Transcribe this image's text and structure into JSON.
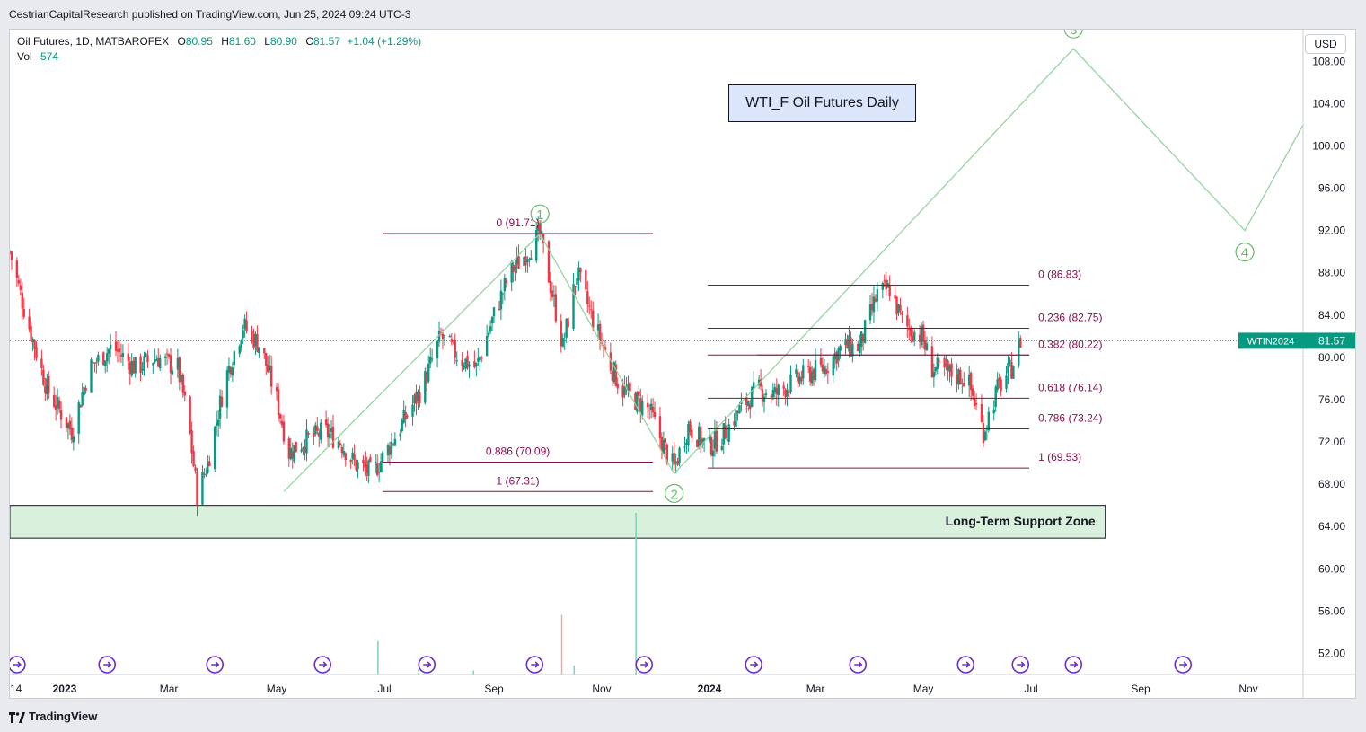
{
  "header": {
    "publisher_line": "CestrianCapitalResearch published on TradingView.com, Jun 25, 2024 09:24 UTC-3"
  },
  "legend": {
    "symbol": "Oil Futures, 1D, MATBAROFEX",
    "o_label": "O",
    "o_value": "80.95",
    "h_label": "H",
    "h_value": "81.60",
    "l_label": "L",
    "l_value": "80.90",
    "c_label": "C",
    "c_value": "81.57",
    "change": "+1.04 (+1.29%)",
    "vol_label": "Vol",
    "vol_value": "574"
  },
  "currency_button": "USD",
  "annotation_title": "WTI_F Oil Futures Daily",
  "support_zone_label": "Long-Term Support Zone",
  "price_tag": {
    "symbol": "WTIN2024",
    "value": "81.57"
  },
  "footer": {
    "brand": "TradingView"
  },
  "colors": {
    "up": "#089981",
    "down": "#f23645",
    "fib": "#880e4f",
    "wave": "#66bb6a",
    "zone_fill": "#d8f0dc",
    "event": "#6c2dc7"
  },
  "chart_data": {
    "type": "candlestick",
    "symbol": "WTIN2024",
    "interval": "1D",
    "ylim": [
      50,
      111
    ],
    "y_ticks": [
      52,
      56,
      60,
      64,
      68,
      72,
      76,
      80,
      84,
      88,
      92,
      96,
      100,
      104,
      108
    ],
    "y_tick_labels": [
      "52.00",
      "56.00",
      "60.00",
      "64.00",
      "68.00",
      "72.00",
      "76.00",
      "80.00",
      "84.00",
      "88.00",
      "92.00",
      "96.00",
      "100.00",
      "104.00",
      "108.00"
    ],
    "x_range": [
      "2022-12-01",
      "2024-12-02"
    ],
    "x_ticks": [
      {
        "date": "2022-12-01",
        "label": "14"
      },
      {
        "date": "2023-01-01",
        "label": "2023"
      },
      {
        "date": "2023-03-01",
        "label": "Mar"
      },
      {
        "date": "2023-05-01",
        "label": "May"
      },
      {
        "date": "2023-07-01",
        "label": "Jul"
      },
      {
        "date": "2023-09-01",
        "label": "Sep"
      },
      {
        "date": "2023-11-01",
        "label": "Nov"
      },
      {
        "date": "2024-01-01",
        "label": "2024"
      },
      {
        "date": "2024-03-01",
        "label": "Mar"
      },
      {
        "date": "2024-05-01",
        "label": "May"
      },
      {
        "date": "2024-07-01",
        "label": "Jul"
      },
      {
        "date": "2024-09-01",
        "label": "Sep"
      },
      {
        "date": "2024-11-01",
        "label": "Nov"
      }
    ],
    "price_path": [
      [
        "2022-12-01",
        90
      ],
      [
        "2022-12-10",
        84
      ],
      [
        "2022-12-22",
        77
      ],
      [
        "2023-01-05",
        73
      ],
      [
        "2023-01-15",
        79
      ],
      [
        "2023-01-28",
        81
      ],
      [
        "2023-02-10",
        79
      ],
      [
        "2023-02-22",
        80
      ],
      [
        "2023-03-06",
        79
      ],
      [
        "2023-03-12",
        74
      ],
      [
        "2023-03-17",
        67
      ],
      [
        "2023-03-23",
        70
      ],
      [
        "2023-04-02",
        78
      ],
      [
        "2023-04-12",
        83
      ],
      [
        "2023-04-22",
        81
      ],
      [
        "2023-05-01",
        76
      ],
      [
        "2023-05-08",
        71
      ],
      [
        "2023-05-16",
        72
      ],
      [
        "2023-05-28",
        73
      ],
      [
        "2023-06-06",
        72
      ],
      [
        "2023-06-14",
        70
      ],
      [
        "2023-06-24",
        69
      ],
      [
        "2023-07-02",
        71
      ],
      [
        "2023-07-12",
        74
      ],
      [
        "2023-07-22",
        77
      ],
      [
        "2023-08-02",
        82
      ],
      [
        "2023-08-12",
        80
      ],
      [
        "2023-08-22",
        79
      ],
      [
        "2023-09-01",
        84
      ],
      [
        "2023-09-10",
        88
      ],
      [
        "2023-09-20",
        90
      ],
      [
        "2023-09-27",
        91.7
      ],
      [
        "2023-10-04",
        86
      ],
      [
        "2023-10-10",
        81
      ],
      [
        "2023-10-18",
        88
      ],
      [
        "2023-10-26",
        84
      ],
      [
        "2023-11-04",
        80
      ],
      [
        "2023-11-12",
        77
      ],
      [
        "2023-11-20",
        76
      ],
      [
        "2023-11-28",
        75
      ],
      [
        "2023-12-05",
        72
      ],
      [
        "2023-12-12",
        69.5
      ],
      [
        "2023-12-20",
        73.5
      ],
      [
        "2023-12-31",
        71.5
      ],
      [
        "2024-01-08",
        72.5
      ],
      [
        "2024-01-18",
        75
      ],
      [
        "2024-01-28",
        77
      ],
      [
        "2024-02-07",
        76.5
      ],
      [
        "2024-02-16",
        77.5
      ],
      [
        "2024-02-26",
        78.5
      ],
      [
        "2024-03-06",
        79
      ],
      [
        "2024-03-16",
        81
      ],
      [
        "2024-03-26",
        81
      ],
      [
        "2024-04-05",
        86
      ],
      [
        "2024-04-12",
        86.5
      ],
      [
        "2024-04-20",
        83
      ],
      [
        "2024-04-30",
        82
      ],
      [
        "2024-05-06",
        79
      ],
      [
        "2024-05-16",
        78.5
      ],
      [
        "2024-05-26",
        78
      ],
      [
        "2024-06-04",
        73
      ],
      [
        "2024-06-12",
        77
      ],
      [
        "2024-06-20",
        79
      ],
      [
        "2024-06-25",
        81.57
      ]
    ],
    "volume": [
      {
        "date": "2023-06-27",
        "value": 3300
      },
      {
        "date": "2023-10-09",
        "value": 5900
      },
      {
        "date": "2023-11-20",
        "value": 16000
      },
      {
        "date": "2023-07-20",
        "value": 500
      },
      {
        "date": "2023-08-20",
        "value": 400
      },
      {
        "date": "2023-10-16",
        "value": 900
      }
    ],
    "volume_max": 16000,
    "fib_retracements": [
      {
        "x_start": "2023-06-30",
        "x_end": "2023-11-30",
        "levels": [
          {
            "ratio": "0",
            "value": 91.71,
            "label": "0 (91.71)"
          },
          {
            "ratio": "0.886",
            "value": 70.09,
            "label": "0.886 (70.09)"
          },
          {
            "ratio": "1",
            "value": 67.31,
            "label": "1 (67.31)"
          }
        ]
      },
      {
        "x_start": "2023-12-31",
        "x_end": "2024-06-30",
        "levels": [
          {
            "ratio": "0",
            "value": 86.83,
            "label": "0 (86.83)"
          },
          {
            "ratio": "0.236",
            "value": 82.75,
            "label": "0.236 (82.75)"
          },
          {
            "ratio": "0.382",
            "value": 80.22,
            "label": "0.382 (80.22)"
          },
          {
            "ratio": "0.618",
            "value": 76.14,
            "label": "0.618 (76.14)"
          },
          {
            "ratio": "0.786",
            "value": 73.24,
            "label": "0.786 (73.24)"
          },
          {
            "ratio": "1",
            "value": 69.53,
            "label": "1 (69.53)"
          }
        ],
        "extra_line": {
          "x_start": "2024-01-28",
          "x_end": "2024-06-30",
          "value": 80.22
        }
      }
    ],
    "elliott_wave": [
      {
        "date": "2023-05-05",
        "value": 67.3,
        "label": ""
      },
      {
        "date": "2023-09-27",
        "value": 91.7,
        "label": "1"
      },
      {
        "date": "2023-12-12",
        "value": 69.0,
        "label": "2"
      },
      {
        "date": "2024-07-25",
        "value": 109.2,
        "label": "3"
      },
      {
        "date": "2024-10-30",
        "value": 92.0,
        "label": "4"
      },
      {
        "date": "2024-12-02",
        "value": 102.0,
        "label": ""
      }
    ],
    "support_zone": {
      "x_start": "2022-12-01",
      "x_end": "2024-08-12",
      "y_low": 62.9,
      "y_high": 66.0
    },
    "last_price": 81.57,
    "event_dates": [
      "2022-12-05",
      "2023-01-25",
      "2023-03-27",
      "2023-05-27",
      "2023-07-25",
      "2023-09-24",
      "2023-11-25",
      "2024-01-26",
      "2024-03-25",
      "2024-05-25",
      "2024-06-25",
      "2024-07-25",
      "2024-09-25"
    ]
  }
}
